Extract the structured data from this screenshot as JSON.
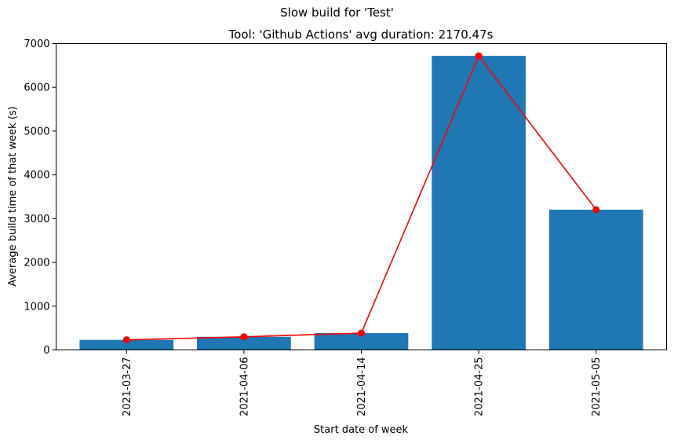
{
  "figure": {
    "suptitle": "Slow build for 'Test'"
  },
  "chart_data": {
    "type": "bar",
    "title": "Tool: 'Github Actions' avg duration: 2170.47s",
    "xlabel": "Start date of week",
    "ylabel": "Average build time of that week (s)",
    "categories": [
      "2021-03-27",
      "2021-04-06",
      "2021-04-14",
      "2021-04-25",
      "2021-05-05"
    ],
    "values": [
      230,
      300,
      385,
      6720,
      3205
    ],
    "line_values": [
      230,
      300,
      385,
      6720,
      3205
    ],
    "ylim": [
      0,
      7000
    ],
    "yticks": [
      0,
      1000,
      2000,
      3000,
      4000,
      5000,
      6000,
      7000
    ],
    "grid": false,
    "colors": {
      "bar": "#1f77b4",
      "line": "#ff0000"
    }
  }
}
